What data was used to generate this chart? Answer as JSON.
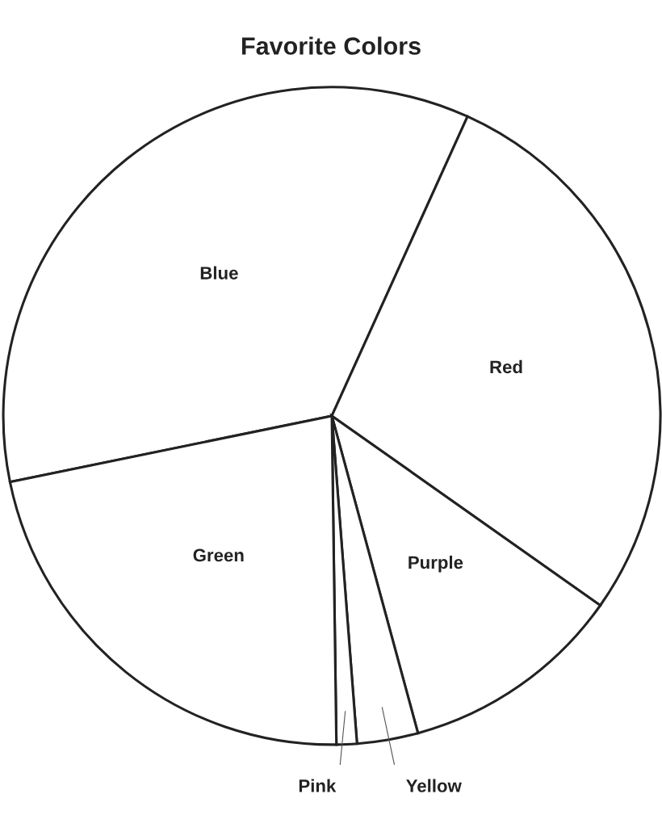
{
  "chart_data": {
    "type": "pie",
    "title": "Favorite Colors",
    "categories": [
      "Blue",
      "Red",
      "Purple",
      "Yellow",
      "Pink",
      "Green"
    ],
    "values": [
      35,
      28,
      11,
      3,
      1,
      22
    ],
    "colors": [
      "#ffffff",
      "#ffffff",
      "#ffffff",
      "#ffffff",
      "#ffffff",
      "#ffffff"
    ]
  }
}
